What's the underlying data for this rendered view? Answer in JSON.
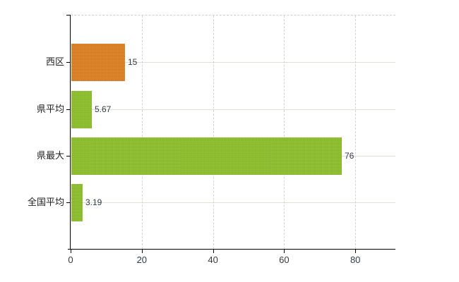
{
  "chart_data": {
    "type": "bar",
    "orientation": "horizontal",
    "title": "",
    "xlabel": "",
    "ylabel": "",
    "categories": [
      "西区",
      "県平均",
      "県最大",
      "全国平均"
    ],
    "values": [
      15,
      5.67,
      76,
      3.19
    ],
    "value_labels": [
      "15",
      "5.67",
      "76",
      "3.19"
    ],
    "bar_colors": [
      "#e1801f",
      "#8dc228",
      "#8dc228",
      "#8dc228"
    ],
    "x_ticks": [
      0,
      20,
      40,
      60,
      80
    ],
    "x_tick_labels": [
      "0",
      "20",
      "40",
      "60",
      "80"
    ],
    "xlim": [
      0,
      91.3
    ],
    "grid": true,
    "legend": "none",
    "colors": {
      "accent_orange": "#e1801f",
      "accent_green": "#8dc228",
      "axis": "#000000",
      "grid_horizontal": "#dce0d6",
      "grid_vertical": "#d6d2cc",
      "text": "#333a42",
      "background": "#ffffff"
    }
  }
}
